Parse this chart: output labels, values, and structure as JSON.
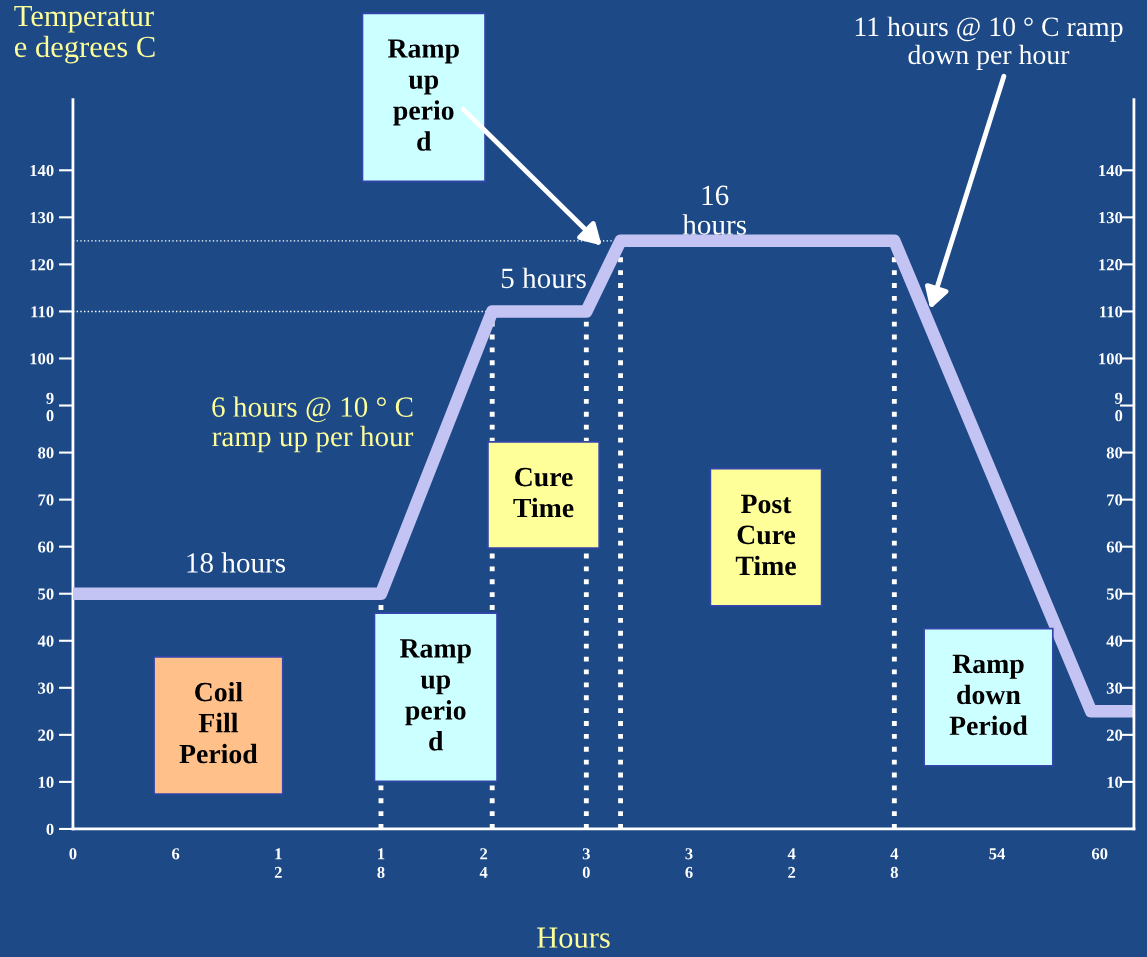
{
  "chart_data": {
    "type": "line",
    "xlabel": "Hours",
    "ylabel": "Temperatur\ne degrees C",
    "series": [
      {
        "color": "#c4c4f4",
        "line_style": "solid",
        "x": [
          0,
          18,
          24.5,
          30,
          32,
          48,
          59.5,
          62
        ],
        "values": [
          50,
          50,
          110,
          110,
          125,
          125,
          25,
          25
        ]
      }
    ],
    "xlim": [
      0,
      62
    ],
    "ylim": [
      0,
      155
    ],
    "y2lim": [
      0,
      155
    ],
    "xticks": [
      0,
      6,
      {
        "value": 12,
        "label": "1\n2"
      },
      {
        "value": 18,
        "label": "1\n8"
      },
      {
        "value": 24,
        "label": "2\n4"
      },
      {
        "value": 30,
        "label": "3\n0"
      },
      {
        "value": 36,
        "label": "3\n6"
      },
      {
        "value": 42,
        "label": "4\n2"
      },
      {
        "value": 48,
        "label": "4\n8"
      },
      54,
      60
    ],
    "yticks": [
      0,
      10,
      20,
      30,
      40,
      50,
      60,
      70,
      80,
      {
        "value": 90,
        "label": "9\n0"
      },
      100,
      110,
      120,
      130,
      140
    ],
    "y2ticks": [
      10,
      20,
      30,
      40,
      50,
      60,
      70,
      80,
      {
        "value": 90,
        "label": "9\n0"
      },
      100,
      110,
      120,
      130,
      140
    ],
    "ref_lines": [
      {
        "axis": "y",
        "value": 110,
        "color": "#ffffff",
        "line_style": "dotted"
      },
      {
        "axis": "y",
        "value": 125,
        "color": "#ffffff",
        "line_style": "dotted"
      },
      {
        "axis": "x",
        "value": 18,
        "color": "#ffffff",
        "line_style": "dotted"
      },
      {
        "axis": "x",
        "value": 24.5,
        "color": "#ffffff",
        "line_style": "dotted"
      },
      {
        "axis": "x",
        "value": 30,
        "color": "#ffffff",
        "line_style": "dotted"
      },
      {
        "axis": "x",
        "value": 32,
        "color": "#ffffff",
        "line_style": "dotted"
      },
      {
        "axis": "x",
        "value": 48,
        "color": "#ffffff",
        "line_style": "dotted"
      }
    ],
    "annotations": [
      "18 hours",
      "6 hours @ 10 ° C\nramp up per hour",
      "5 hours",
      "16\nhours",
      {
        "text": "11 hours @ 10 ° C ramp\ndown per hour",
        "x": 50.1,
        "y": 110.5
      },
      "Coil\nFill\nPeriod",
      "Ramp\nup\nperio\nd",
      "Cure\nTime",
      "Post\nCure\nTime",
      "Ramp\ndown\nPeriod",
      {
        "text": "Ramp\nup\nperio\nd",
        "x": 30.9,
        "y": 124
      }
    ]
  }
}
